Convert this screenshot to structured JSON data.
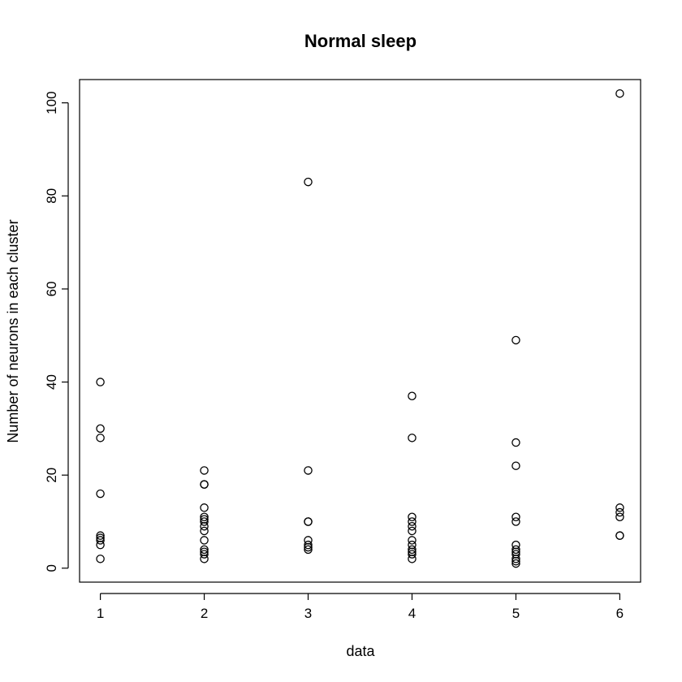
{
  "chart_data": {
    "type": "scatter",
    "title": "Normal sleep",
    "xlabel": "data",
    "ylabel": "Number of neurons in each cluster",
    "xlim": [
      0.8,
      6.2
    ],
    "ylim": [
      -3,
      105
    ],
    "x_ticks": [
      1,
      2,
      3,
      4,
      5,
      6
    ],
    "y_ticks": [
      0,
      20,
      40,
      60,
      80,
      100
    ],
    "grid": false,
    "legend": "none",
    "series": [
      {
        "points": [
          [
            1,
            40
          ],
          [
            1,
            30
          ],
          [
            1,
            28
          ],
          [
            1,
            16
          ],
          [
            1,
            7
          ],
          [
            1,
            6.5
          ],
          [
            1,
            6
          ],
          [
            1,
            5
          ],
          [
            1,
            2
          ],
          [
            2,
            21
          ],
          [
            2,
            18
          ],
          [
            2,
            18
          ],
          [
            2,
            13
          ],
          [
            2,
            11
          ],
          [
            2,
            10.5
          ],
          [
            2,
            10
          ],
          [
            2,
            9
          ],
          [
            2,
            8
          ],
          [
            2,
            6
          ],
          [
            2,
            4
          ],
          [
            2,
            3.5
          ],
          [
            2,
            3
          ],
          [
            2,
            2
          ],
          [
            3,
            83
          ],
          [
            3,
            21
          ],
          [
            3,
            10
          ],
          [
            3,
            10
          ],
          [
            3,
            6
          ],
          [
            3,
            5
          ],
          [
            3,
            4.5
          ],
          [
            3,
            4
          ],
          [
            4,
            37
          ],
          [
            4,
            28
          ],
          [
            4,
            11
          ],
          [
            4,
            10
          ],
          [
            4,
            9
          ],
          [
            4,
            8
          ],
          [
            4,
            6
          ],
          [
            4,
            5
          ],
          [
            4,
            4
          ],
          [
            4,
            3.5
          ],
          [
            4,
            3
          ],
          [
            4,
            2
          ],
          [
            5,
            49
          ],
          [
            5,
            27
          ],
          [
            5,
            22
          ],
          [
            5,
            11
          ],
          [
            5,
            10
          ],
          [
            5,
            5
          ],
          [
            5,
            4
          ],
          [
            5,
            3.5
          ],
          [
            5,
            3
          ],
          [
            5,
            2
          ],
          [
            5,
            1.5
          ],
          [
            5,
            1
          ],
          [
            6,
            102
          ],
          [
            6,
            13
          ],
          [
            6,
            12
          ],
          [
            6,
            11
          ],
          [
            6,
            7
          ],
          [
            6,
            7
          ]
        ]
      }
    ]
  }
}
